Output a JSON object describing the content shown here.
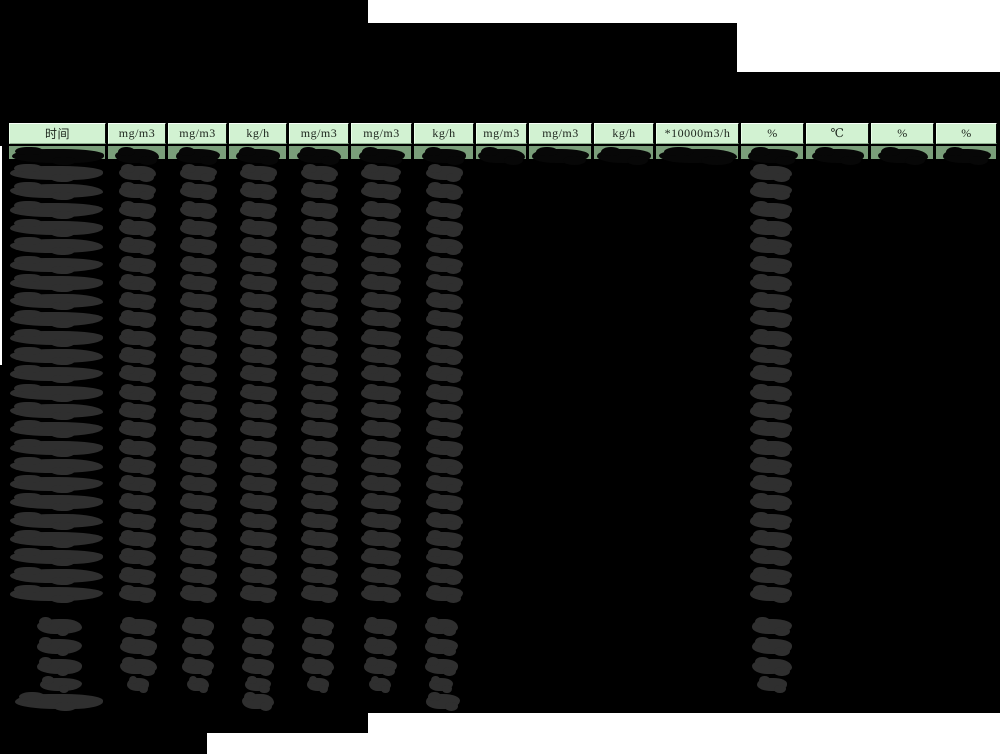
{
  "page": {
    "background_color": "#000000",
    "white_margin_color": "#ffffff"
  },
  "table": {
    "column_headers": [
      "时间",
      "mg/m3",
      "mg/m3",
      "kg/h",
      "mg/m3",
      "mg/m3",
      "kg/h",
      "mg/m3",
      "mg/m3",
      "kg/h",
      "*10000m3/h",
      "%",
      "℃",
      "%",
      "%"
    ],
    "colors": {
      "header_fill": "#d2f2d2",
      "header_text": "#1c241c",
      "first_row_strip_fill": "#7a9e7a",
      "redaction_blob": "#2f2f2f",
      "redaction_block": "#000000"
    },
    "redactions": {
      "title_block_redacted": true,
      "main_data_rows": 24,
      "summary_rows": 3,
      "summary_small_rows": 1,
      "footer_rows": 1
    }
  }
}
